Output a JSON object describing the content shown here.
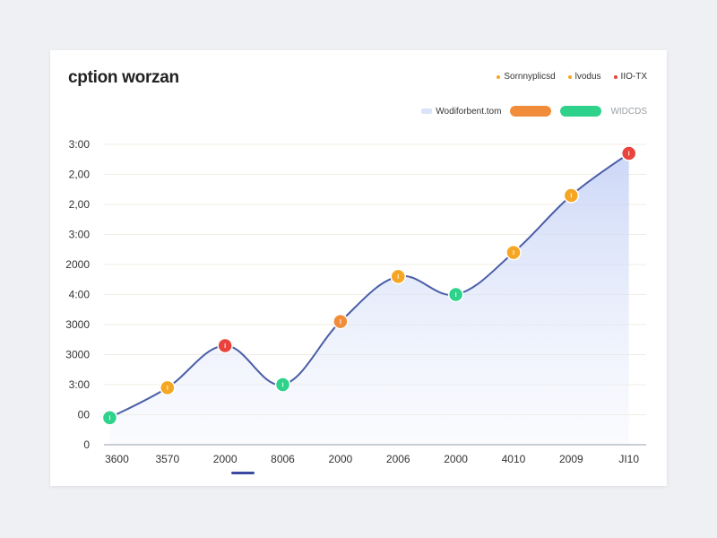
{
  "chart_data": {
    "type": "line",
    "title": "cption worzan",
    "legend": {
      "top": [
        {
          "label": "Sornnyplicsd",
          "color": "#f5a623"
        },
        {
          "label": "lvodus",
          "color": "#f5a623"
        },
        {
          "label": "IIO-TX",
          "color": "#e8433c"
        }
      ],
      "row2": [
        {
          "label": "Wodiforbent.tom",
          "kind": "area",
          "color": "#dbe3fb"
        },
        {
          "label": "",
          "kind": "pill",
          "color": "#f08c3a"
        },
        {
          "label": "",
          "kind": "pill",
          "color": "#2ed28a"
        },
        {
          "label": "WIDCDS",
          "kind": "pill-outline",
          "color": "#f1f3f5"
        }
      ]
    },
    "y_ticks": [
      {
        "label": "3:00",
        "v": 10
      },
      {
        "label": "2,00",
        "v": 9
      },
      {
        "label": "2,00",
        "v": 8
      },
      {
        "label": "3:00",
        "v": 7
      },
      {
        "label": "2000",
        "v": 6
      },
      {
        "label": "4:00",
        "v": 5
      },
      {
        "label": "3000",
        "v": 4
      },
      {
        "label": "3000",
        "v": 3
      },
      {
        "label": "3:00",
        "v": 2
      },
      {
        "label": "00",
        "v": 1
      },
      {
        "label": "0",
        "v": 0
      }
    ],
    "ylim": [
      0,
      10
    ],
    "x_tick_labels": [
      "3600",
      "3570",
      "2000",
      "8006",
      "2000",
      "2006",
      "2000",
      "4010",
      "2009",
      "JI10"
    ],
    "x": [
      0,
      1,
      2,
      3,
      4,
      5,
      6,
      7,
      8,
      9
    ],
    "xlim": [
      -0.1,
      9.3
    ],
    "series": [
      {
        "values": [
          0.9,
          1.9,
          3.3,
          2.0,
          4.1,
          5.6,
          5.0,
          6.4,
          8.3,
          9.7
        ],
        "line_color": "#4a5ea8",
        "fill_color": "#c9d5f7",
        "marker_colors": [
          "#2ed28a",
          "#f5a623",
          "#e8433c",
          "#2ed28a",
          "#f08c3a",
          "#f5a623",
          "#2ed28a",
          "#f5a623",
          "#f5a623",
          "#e8433c"
        ]
      }
    ],
    "grid": true,
    "legend_position": "top-right"
  }
}
